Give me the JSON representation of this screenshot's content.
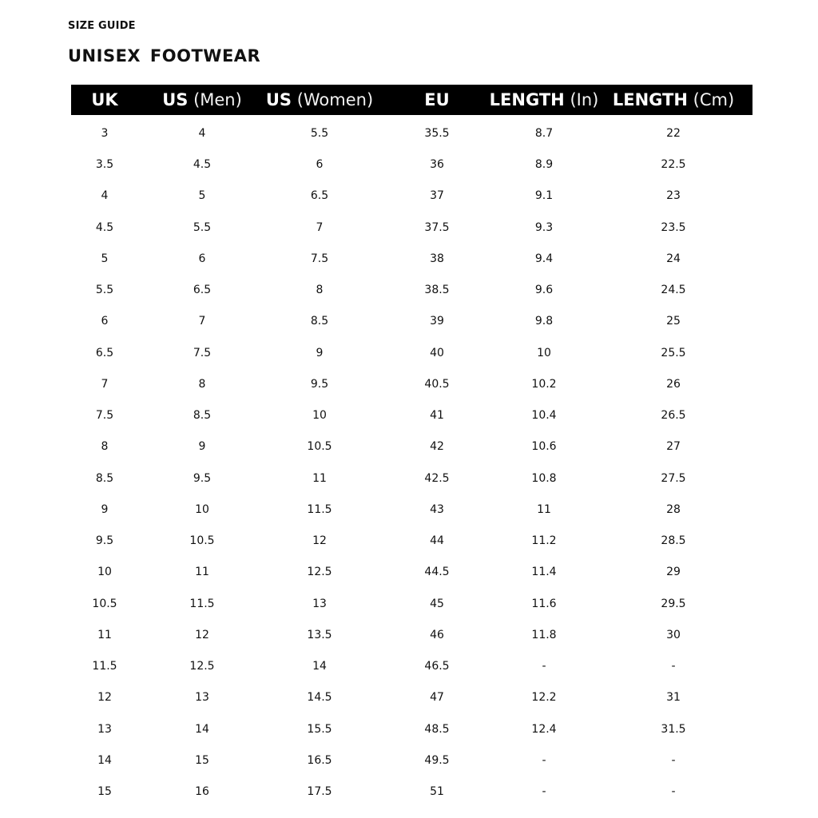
{
  "kicker": "SIZE GUIDE",
  "title": "UNISEX  FOOTWEAR",
  "columns": [
    {
      "bold": "UK",
      "light": ""
    },
    {
      "bold": "US",
      "light": "(Men)"
    },
    {
      "bold": "US",
      "light": "(Women)"
    },
    {
      "bold": "EU",
      "light": ""
    },
    {
      "bold": "LENGTH",
      "light": "(In)"
    },
    {
      "bold": "LENGTH",
      "light": "(Cm)"
    }
  ],
  "rows": [
    [
      "3",
      "4",
      "5.5",
      "35.5",
      "8.7",
      "22"
    ],
    [
      "3.5",
      "4.5",
      "6",
      "36",
      "8.9",
      "22.5"
    ],
    [
      "4",
      "5",
      "6.5",
      "37",
      "9.1",
      "23"
    ],
    [
      "4.5",
      "5.5",
      "7",
      "37.5",
      "9.3",
      "23.5"
    ],
    [
      "5",
      "6",
      "7.5",
      "38",
      "9.4",
      "24"
    ],
    [
      "5.5",
      "6.5",
      "8",
      "38.5",
      "9.6",
      "24.5"
    ],
    [
      "6",
      "7",
      "8.5",
      "39",
      "9.8",
      "25"
    ],
    [
      "6.5",
      "7.5",
      "9",
      "40",
      "10",
      "25.5"
    ],
    [
      "7",
      "8",
      "9.5",
      "40.5",
      "10.2",
      "26"
    ],
    [
      "7.5",
      "8.5",
      "10",
      "41",
      "10.4",
      "26.5"
    ],
    [
      "8",
      "9",
      "10.5",
      "42",
      "10.6",
      "27"
    ],
    [
      "8.5",
      "9.5",
      "11",
      "42.5",
      "10.8",
      "27.5"
    ],
    [
      "9",
      "10",
      "11.5",
      "43",
      "11",
      "28"
    ],
    [
      "9.5",
      "10.5",
      "12",
      "44",
      "11.2",
      "28.5"
    ],
    [
      "10",
      "11",
      "12.5",
      "44.5",
      "11.4",
      "29"
    ],
    [
      "10.5",
      "11.5",
      "13",
      "45",
      "11.6",
      "29.5"
    ],
    [
      "11",
      "12",
      "13.5",
      "46",
      "11.8",
      "30"
    ],
    [
      "11.5",
      "12.5",
      "14",
      "46.5",
      "-",
      "-"
    ],
    [
      "12",
      "13",
      "14.5",
      "47",
      "12.2",
      "31"
    ],
    [
      "13",
      "14",
      "15.5",
      "48.5",
      "12.4",
      "31.5"
    ],
    [
      "14",
      "15",
      "16.5",
      "49.5",
      "-",
      "-"
    ],
    [
      "15",
      "16",
      "17.5",
      "51",
      "-",
      "-"
    ]
  ]
}
